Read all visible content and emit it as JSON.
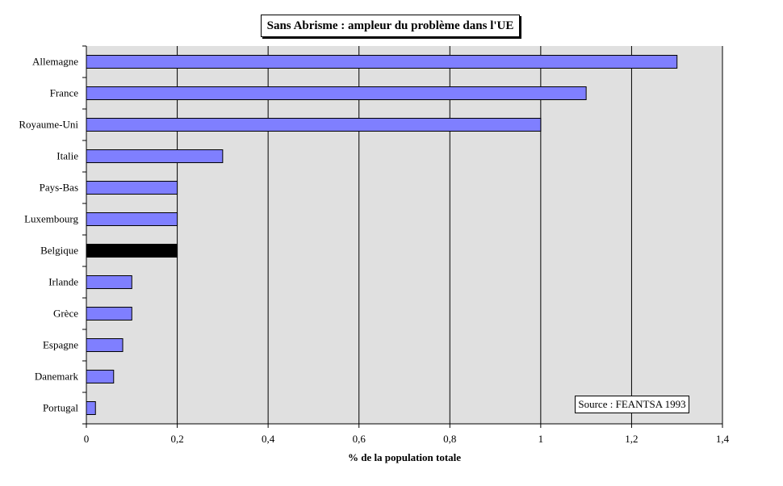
{
  "chart_data": {
    "type": "bar",
    "orientation": "horizontal",
    "title": "Sans Abrisme :  ampleur du problème dans l'UE",
    "xlabel": "% de la population totale",
    "ylabel": "",
    "xlim": [
      0,
      1.4
    ],
    "x_ticks": [
      0,
      0.2,
      0.4,
      0.6,
      0.8,
      1,
      1.2,
      1.4
    ],
    "x_tick_labels": [
      "0",
      "0,2",
      "0,4",
      "0,6",
      "0,8",
      "1",
      "1,2",
      "1,4"
    ],
    "grid": "vertical",
    "categories": [
      "Allemagne",
      "France",
      "Royaume-Uni",
      "Italie",
      "Pays-Bas",
      "Luxembourg",
      "Belgique",
      "Irlande",
      "Grèce",
      "Espagne",
      "Danemark",
      "Portugal"
    ],
    "values": [
      1.3,
      1.1,
      1.0,
      0.3,
      0.2,
      0.2,
      0.2,
      0.1,
      0.1,
      0.08,
      0.06,
      0.02
    ],
    "highlight_category": "Belgique",
    "colors": {
      "bar": "#7f7fff",
      "highlight": "#000000",
      "plot_background": "#e0e0e0",
      "grid": "#000000"
    },
    "annotation": "Source : FEANTSA  1993",
    "annotation_position": "bottom-right"
  }
}
